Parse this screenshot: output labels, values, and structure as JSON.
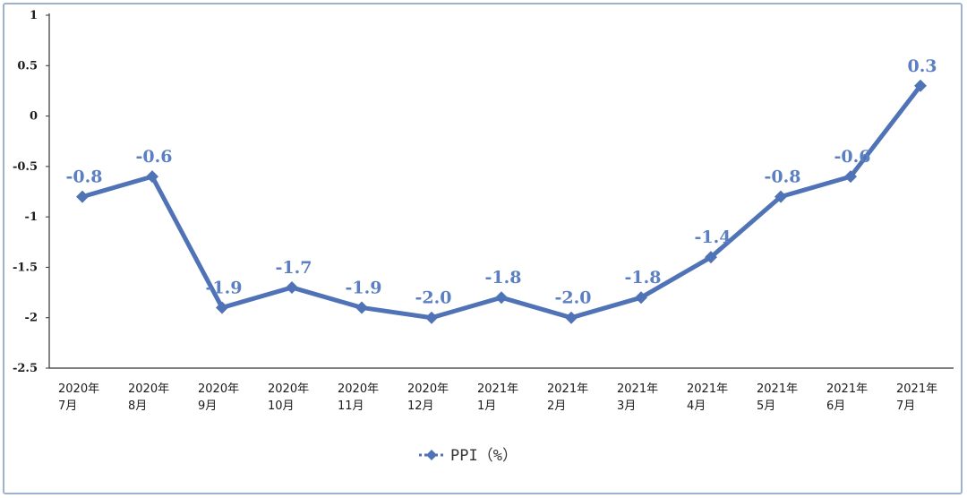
{
  "chart_data": {
    "type": "line",
    "categories": [
      [
        "2020年",
        "7月"
      ],
      [
        "2020年",
        "8月"
      ],
      [
        "2020年",
        "9月"
      ],
      [
        "2020年",
        "10月"
      ],
      [
        "2020年",
        "11月"
      ],
      [
        "2020年",
        "12月"
      ],
      [
        "2021年",
        "1月"
      ],
      [
        "2021年",
        "2月"
      ],
      [
        "2021年",
        "3月"
      ],
      [
        "2021年",
        "4月"
      ],
      [
        "2021年",
        "5月"
      ],
      [
        "2021年",
        "6月"
      ],
      [
        "2021年",
        "7月"
      ]
    ],
    "series": [
      {
        "name": "PPI（%）",
        "values": [
          -0.8,
          -0.6,
          -1.9,
          -1.7,
          -1.9,
          -2.0,
          -1.8,
          -2.0,
          -1.8,
          -1.4,
          -0.8,
          -0.6,
          0.3
        ],
        "labels": [
          "-0.8",
          "-0.6",
          "-1.9",
          "-1.7",
          "-1.9",
          "-2.0",
          "-1.8",
          "-2.0",
          "-1.8",
          "-1.4",
          "-0.8",
          "-0.6",
          "0.3"
        ]
      }
    ],
    "yticks": [
      {
        "value": 1,
        "label": "1"
      },
      {
        "value": 0.5,
        "label": "0.5"
      },
      {
        "value": 0,
        "label": "0"
      },
      {
        "value": -0.5,
        "label": "-0.5"
      },
      {
        "value": -1,
        "label": "-1"
      },
      {
        "value": -1.5,
        "label": "-1.5"
      },
      {
        "value": -2,
        "label": "-2"
      },
      {
        "value": -2.5,
        "label": "-2.5"
      }
    ],
    "ylim": [
      -2.5,
      1
    ],
    "title": "",
    "xlabel": "",
    "ylabel": "",
    "grid": false,
    "legend_position": "bottom-center",
    "colors": {
      "line": "#4f73b6",
      "label": "#5b7fc1",
      "axis": "#333333",
      "border": "#9db2cf"
    }
  }
}
